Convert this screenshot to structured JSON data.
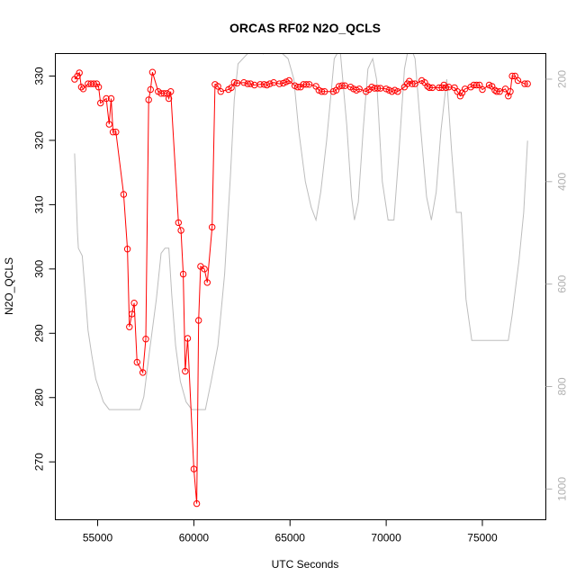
{
  "chart_data": {
    "type": "scatter",
    "title": "ORCAS RF02 N2O_QCLS",
    "xlabel": "UTC Seconds",
    "ylabel": "N2O_QCLS",
    "xlim": [
      52800,
      78300
    ],
    "ylim": [
      261,
      333.5
    ],
    "y2lim": [
      1060,
      150
    ],
    "x_ticks": [
      55000,
      60000,
      65000,
      70000,
      75000
    ],
    "y_ticks": [
      270,
      280,
      290,
      300,
      310,
      320,
      330
    ],
    "y2_ticks": [
      200,
      400,
      600,
      800,
      1000
    ],
    "grid": false,
    "colors": {
      "n2o": "#ff0000",
      "secondary": "#bdbdbd",
      "right_axis": "#b0b0b0"
    },
    "series": [
      {
        "values": [
          [
            53800,
            329.5
          ],
          [
            53950,
            330.0
          ],
          [
            54050,
            330.5
          ],
          [
            54150,
            328.3
          ],
          [
            54250,
            328.0
          ],
          [
            54500,
            328.8
          ],
          [
            54650,
            328.8
          ],
          [
            54800,
            328.8
          ],
          [
            54950,
            328.8
          ],
          [
            55050,
            328.3
          ],
          [
            55150,
            325.8
          ],
          [
            55450,
            326.5
          ],
          [
            55600,
            322.5
          ],
          [
            55700,
            326.5
          ],
          [
            55800,
            321.3
          ],
          [
            55950,
            321.3
          ],
          [
            56350,
            311.6
          ],
          [
            56550,
            303.1
          ],
          [
            56650,
            291.0
          ],
          [
            56780,
            293.0
          ],
          [
            56900,
            294.7
          ],
          [
            57050,
            285.5
          ],
          [
            57350,
            283.9
          ],
          [
            57500,
            289.1
          ],
          [
            57650,
            326.3
          ],
          [
            57750,
            327.9
          ],
          [
            57850,
            330.6
          ],
          [
            58150,
            327.6
          ],
          [
            58300,
            327.3
          ],
          [
            58450,
            327.3
          ],
          [
            58600,
            327.3
          ],
          [
            58700,
            326.5
          ],
          [
            58800,
            327.6
          ],
          [
            59200,
            307.2
          ],
          [
            59330,
            306.0
          ],
          [
            59450,
            299.2
          ],
          [
            59550,
            284.1
          ],
          [
            59680,
            289.2
          ],
          [
            60000,
            268.9
          ],
          [
            60150,
            263.5
          ],
          [
            60250,
            292.0
          ],
          [
            60350,
            300.4
          ],
          [
            60550,
            300.0
          ],
          [
            60700,
            297.9
          ],
          [
            60950,
            306.5
          ],
          [
            61100,
            328.7
          ],
          [
            61250,
            328.4
          ],
          [
            61400,
            327.6
          ],
          [
            61800,
            327.9
          ],
          [
            61950,
            328.2
          ],
          [
            62100,
            329.0
          ],
          [
            62250,
            328.9
          ],
          [
            62600,
            329.0
          ],
          [
            62800,
            328.8
          ],
          [
            62950,
            328.8
          ],
          [
            63150,
            328.6
          ],
          [
            63450,
            328.7
          ],
          [
            63650,
            328.7
          ],
          [
            63800,
            328.6
          ],
          [
            63950,
            328.8
          ],
          [
            64150,
            329.0
          ],
          [
            64450,
            328.8
          ],
          [
            64650,
            328.9
          ],
          [
            64800,
            329.1
          ],
          [
            64950,
            329.3
          ],
          [
            65250,
            328.5
          ],
          [
            65400,
            328.3
          ],
          [
            65550,
            328.3
          ],
          [
            65700,
            328.7
          ],
          [
            65850,
            328.7
          ],
          [
            66000,
            328.7
          ],
          [
            66350,
            328.4
          ],
          [
            66500,
            327.8
          ],
          [
            66650,
            327.6
          ],
          [
            66800,
            327.6
          ],
          [
            67250,
            327.6
          ],
          [
            67400,
            327.8
          ],
          [
            67550,
            328.4
          ],
          [
            67700,
            328.5
          ],
          [
            67850,
            328.5
          ],
          [
            68150,
            328.3
          ],
          [
            68300,
            328.0
          ],
          [
            68450,
            327.8
          ],
          [
            68600,
            328.0
          ],
          [
            68950,
            327.6
          ],
          [
            69100,
            327.9
          ],
          [
            69250,
            328.3
          ],
          [
            69400,
            328.1
          ],
          [
            69550,
            328.1
          ],
          [
            69700,
            328.1
          ],
          [
            70000,
            328.0
          ],
          [
            70150,
            327.8
          ],
          [
            70300,
            327.6
          ],
          [
            70450,
            327.8
          ],
          [
            70600,
            327.6
          ],
          [
            70950,
            328.3
          ],
          [
            71100,
            328.8
          ],
          [
            71200,
            329.2
          ],
          [
            71350,
            328.8
          ],
          [
            71500,
            328.8
          ],
          [
            71850,
            329.3
          ],
          [
            72000,
            329.0
          ],
          [
            72150,
            328.4
          ],
          [
            72250,
            328.2
          ],
          [
            72400,
            328.2
          ],
          [
            72750,
            328.2
          ],
          [
            72900,
            328.2
          ],
          [
            73000,
            328.6
          ],
          [
            73100,
            328.2
          ],
          [
            73250,
            328.3
          ],
          [
            73550,
            328.2
          ],
          [
            73700,
            327.6
          ],
          [
            73850,
            326.9
          ],
          [
            73950,
            327.4
          ],
          [
            74100,
            328.0
          ],
          [
            74400,
            328.3
          ],
          [
            74550,
            328.6
          ],
          [
            74700,
            328.6
          ],
          [
            74850,
            328.6
          ],
          [
            75000,
            327.9
          ],
          [
            75350,
            328.6
          ],
          [
            75500,
            328.4
          ],
          [
            75650,
            327.8
          ],
          [
            75750,
            327.6
          ],
          [
            75900,
            327.6
          ],
          [
            76200,
            328.0
          ],
          [
            76350,
            326.9
          ],
          [
            76450,
            327.6
          ],
          [
            76550,
            330.0
          ],
          [
            76700,
            330.0
          ],
          [
            76850,
            329.3
          ],
          [
            77200,
            328.8
          ],
          [
            77350,
            328.8
          ]
        ]
      },
      {
        "axis": "right",
        "values": [
          [
            53800,
            345
          ],
          [
            53950,
            500
          ],
          [
            54000,
            530
          ],
          [
            54200,
            545
          ],
          [
            54400,
            640
          ],
          [
            54500,
            690
          ],
          [
            54700,
            740
          ],
          [
            54900,
            785
          ],
          [
            55300,
            830
          ],
          [
            55600,
            845
          ],
          [
            55900,
            845
          ],
          [
            57200,
            845
          ],
          [
            57400,
            820
          ],
          [
            57700,
            730
          ],
          [
            58050,
            630
          ],
          [
            58300,
            540
          ],
          [
            58500,
            530
          ],
          [
            58700,
            530
          ],
          [
            58850,
            620
          ],
          [
            59050,
            720
          ],
          [
            59300,
            790
          ],
          [
            59600,
            830
          ],
          [
            59900,
            845
          ],
          [
            60150,
            845
          ],
          [
            60600,
            845
          ],
          [
            60900,
            790
          ],
          [
            61250,
            720
          ],
          [
            61600,
            580
          ],
          [
            61900,
            390
          ],
          [
            62100,
            240
          ],
          [
            62300,
            170
          ],
          [
            62800,
            150
          ],
          [
            63100,
            130
          ],
          [
            63400,
            140
          ],
          [
            63600,
            150
          ],
          [
            63700,
            120
          ],
          [
            64100,
            130
          ],
          [
            64400,
            150
          ],
          [
            64600,
            150
          ],
          [
            64900,
            160
          ],
          [
            65200,
            200
          ],
          [
            65450,
            300
          ],
          [
            65800,
            400
          ],
          [
            66100,
            450
          ],
          [
            66350,
            475
          ],
          [
            66600,
            420
          ],
          [
            66900,
            320
          ],
          [
            67200,
            200
          ],
          [
            67300,
            160
          ],
          [
            67600,
            140
          ],
          [
            67950,
            290
          ],
          [
            68200,
            430
          ],
          [
            68350,
            475
          ],
          [
            68550,
            440
          ],
          [
            68800,
            300
          ],
          [
            69050,
            180
          ],
          [
            69300,
            160
          ],
          [
            69500,
            200
          ],
          [
            69800,
            400
          ],
          [
            70100,
            475
          ],
          [
            70400,
            475
          ],
          [
            70650,
            350
          ],
          [
            70950,
            180
          ],
          [
            71200,
            130
          ],
          [
            71500,
            160
          ],
          [
            71800,
            300
          ],
          [
            72100,
            430
          ],
          [
            72350,
            475
          ],
          [
            72600,
            420
          ],
          [
            72850,
            300
          ],
          [
            73150,
            200
          ],
          [
            73400,
            340
          ],
          [
            73650,
            460
          ],
          [
            73900,
            460
          ],
          [
            74150,
            630
          ],
          [
            74450,
            710
          ],
          [
            74600,
            710
          ],
          [
            75200,
            710
          ],
          [
            75800,
            710
          ],
          [
            76350,
            710
          ],
          [
            76550,
            660
          ],
          [
            76900,
            555
          ],
          [
            77150,
            460
          ],
          [
            77350,
            320
          ]
        ]
      }
    ]
  }
}
